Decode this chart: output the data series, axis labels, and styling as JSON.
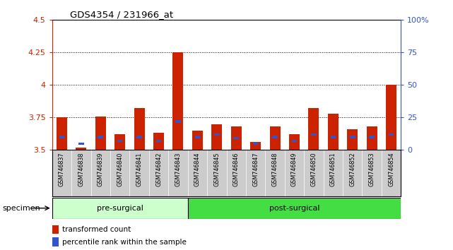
{
  "title": "GDS4354 / 231966_at",
  "samples": [
    "GSM746837",
    "GSM746838",
    "GSM746839",
    "GSM746840",
    "GSM746841",
    "GSM746842",
    "GSM746843",
    "GSM746844",
    "GSM746845",
    "GSM746846",
    "GSM746847",
    "GSM746848",
    "GSM746849",
    "GSM746850",
    "GSM746851",
    "GSM746852",
    "GSM746853",
    "GSM746854"
  ],
  "red_values": [
    3.75,
    3.52,
    3.76,
    3.62,
    3.82,
    3.63,
    4.25,
    3.65,
    3.7,
    3.68,
    3.56,
    3.68,
    3.62,
    3.82,
    3.78,
    3.66,
    3.68,
    4.0
  ],
  "blue_values_pct": [
    10,
    5,
    10,
    7,
    10,
    7,
    22,
    10,
    12,
    9,
    5,
    10,
    7,
    12,
    10,
    10,
    10,
    12
  ],
  "ymin": 3.5,
  "ymax": 4.5,
  "yticks_left": [
    3.5,
    3.75,
    4.0,
    4.25,
    4.5
  ],
  "yticks_right_pct": [
    0,
    25,
    50,
    75,
    100
  ],
  "pre_surgical_count": 7,
  "pre_surgical_label": "pre-surgical",
  "post_surgical_label": "post-surgical",
  "specimen_label": "specimen",
  "legend_red": "transformed count",
  "legend_blue": "percentile rank within the sample",
  "red_color": "#cc2200",
  "blue_color": "#3355cc",
  "pre_color": "#ccffcc",
  "post_color": "#44dd44",
  "axis_left_color": "#cc2200",
  "axis_right_color": "#3355cc",
  "xticklabel_bg": "#cccccc",
  "bar_width": 0.55
}
